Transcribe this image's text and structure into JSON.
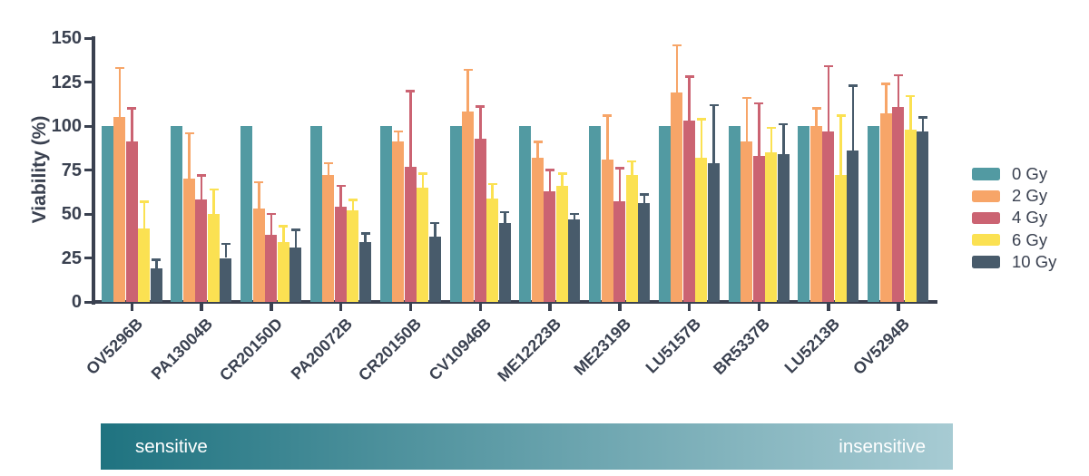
{
  "figure": {
    "background": "#ffffff"
  },
  "chart_data": {
    "type": "bar",
    "title": "",
    "xlabel": "",
    "ylabel": "Viability (%)",
    "ylim": [
      0,
      150
    ],
    "yticks": [
      0,
      25,
      50,
      75,
      100,
      125,
      150
    ],
    "grid": false,
    "legend_position": "right of plot, vertical",
    "error_bars": "upper whisker only, colored same as series",
    "categories": [
      "OV5296B",
      "PA13004B",
      "CR20150D",
      "PA20072B",
      "CR20150B",
      "CV10946B",
      "ME12223B",
      "ME2319B",
      "LU5157B",
      "BR5337B",
      "LU5213B",
      "OV5294B"
    ],
    "series": [
      {
        "name": "0 Gy",
        "color": "#529AA2",
        "values": [
          100,
          100,
          100,
          100,
          100,
          100,
          100,
          100,
          100,
          100,
          100,
          100
        ],
        "errors_upper": [
          null,
          null,
          null,
          null,
          null,
          null,
          null,
          null,
          null,
          null,
          null,
          null
        ]
      },
      {
        "name": "2 Gy",
        "color": "#F7A568",
        "values": [
          105,
          70,
          53,
          72,
          91,
          108,
          82,
          81,
          119,
          91,
          100,
          107
        ],
        "errors_upper": [
          133,
          96,
          68,
          79,
          97,
          132,
          91,
          106,
          146,
          116,
          110,
          124
        ]
      },
      {
        "name": "4 Gy",
        "color": "#CB6372",
        "values": [
          91,
          58,
          38,
          54,
          77,
          93,
          63,
          57,
          103,
          83,
          97,
          111
        ],
        "errors_upper": [
          110,
          72,
          50,
          66,
          120,
          111,
          75,
          76,
          128,
          113,
          134,
          129
        ]
      },
      {
        "name": "6 Gy",
        "color": "#FBE152",
        "values": [
          42,
          50,
          34,
          52,
          65,
          59,
          66,
          72,
          82,
          85,
          72,
          98
        ],
        "errors_upper": [
          57,
          64,
          43,
          58,
          73,
          67,
          73,
          80,
          104,
          99,
          106,
          117
        ]
      },
      {
        "name": "10 Gy",
        "color": "#485B6B",
        "values": [
          19,
          25,
          31,
          34,
          37,
          45,
          47,
          56,
          79,
          84,
          86,
          97
        ],
        "errors_upper": [
          24,
          33,
          41,
          39,
          45,
          51,
          50,
          61,
          112,
          101,
          123,
          105
        ]
      }
    ]
  },
  "gradient_bar": {
    "left_label": "sensitive",
    "right_label": "insensitive",
    "color_left": "#1F7380",
    "color_right": "#A7CBD3",
    "text_color": "#ffffff"
  },
  "colors": {
    "axis": "#3A4150",
    "text": "#3A4150"
  }
}
